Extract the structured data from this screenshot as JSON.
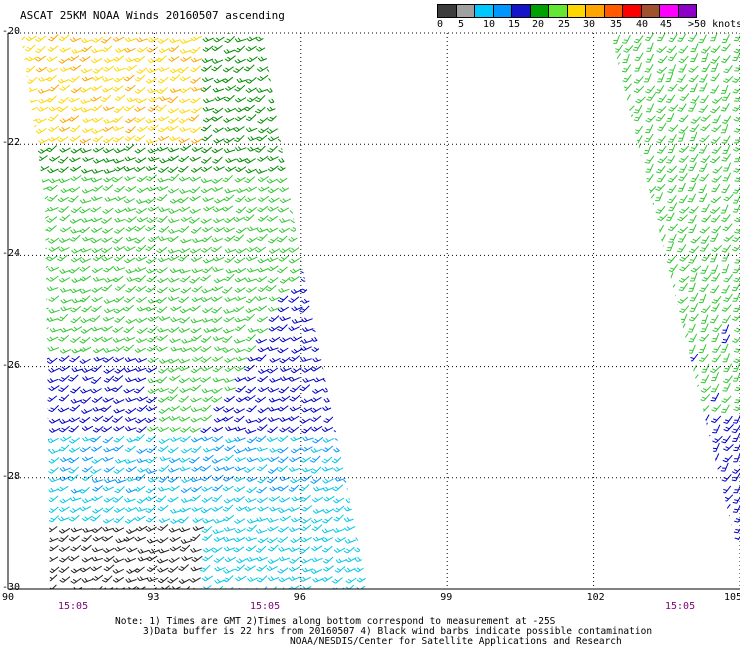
{
  "title": "ASCAT 25KM NOAA Winds 20160507 ascending",
  "legend": {
    "labels": [
      "0",
      "5",
      "10",
      "15",
      "20",
      "25",
      "30",
      "35",
      "40",
      "45",
      ">50 knots"
    ],
    "colors": [
      "#3c3c3c",
      "#a0a0a0",
      "#00c8ff",
      "#0096ff",
      "#1414c8",
      "#00a000",
      "#64e632",
      "#ffd700",
      "#ffa500",
      "#ff5a00",
      "#ff0000",
      "#a0522d",
      "#ff00ff",
      "#8c00c8"
    ]
  },
  "axes": {
    "lat_labels": [
      "-20",
      "-22",
      "-24",
      "-26",
      "-28",
      "-30"
    ],
    "lon_labels": [
      "90",
      "93",
      "96",
      "99",
      "102",
      "105"
    ],
    "lat_range": [
      -30,
      -20
    ],
    "lon_range": [
      90,
      105
    ]
  },
  "time_labels": [
    "15:05",
    "15:05",
    "15:05"
  ],
  "notes": {
    "line1": "Note: 1) Times are GMT 2)Times along bottom correspond to measurement at -25S",
    "line2": "3)Data buffer is 22 hrs from 20160507 4) Black wind barbs indicate possible contamination",
    "line3": "NOAA/NESDIS/Center for Satellite Applications and Research"
  },
  "swath_colors": {
    "yellow": "#ffd700",
    "orange": "#ffa500",
    "dark_green": "#008c00",
    "green": "#32c832",
    "blue": "#0000c8",
    "light_blue": "#0096ff",
    "cyan": "#00c8e6",
    "black": "#202020"
  }
}
